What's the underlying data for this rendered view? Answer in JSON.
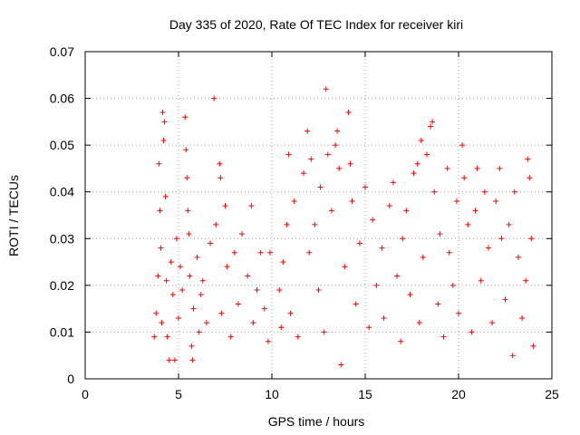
{
  "chart_data": {
    "type": "scatter",
    "title": "Day 335 of 2020, Rate Of TEC Index for receiver kiri",
    "xlabel": "GPS time / hours",
    "ylabel": "ROTI / TECUs",
    "xlim": [
      0,
      25
    ],
    "ylim": [
      0,
      0.07
    ],
    "xticks": [
      0,
      5,
      10,
      15,
      20,
      25
    ],
    "yticks": [
      0,
      0.01,
      0.02,
      0.03,
      0.04,
      0.05,
      0.06,
      0.07
    ],
    "xtick_labels": [
      "0",
      "5",
      "10",
      "15",
      "20",
      "25"
    ],
    "ytick_labels": [
      "0",
      "0.01",
      "0.02",
      "0.03",
      "0.04",
      "0.05",
      "0.06",
      "0.07"
    ],
    "grid": true,
    "marker": "+",
    "color": "#ff0000",
    "series": [
      {
        "name": "kiri",
        "points": [
          [
            3.7,
            0.009
          ],
          [
            3.8,
            0.014
          ],
          [
            3.9,
            0.022
          ],
          [
            3.95,
            0.046
          ],
          [
            4.0,
            0.036
          ],
          [
            4.05,
            0.028
          ],
          [
            4.1,
            0.012
          ],
          [
            4.15,
            0.057
          ],
          [
            4.2,
            0.051
          ],
          [
            4.25,
            0.055
          ],
          [
            4.3,
            0.039
          ],
          [
            4.35,
            0.021
          ],
          [
            4.4,
            0.009
          ],
          [
            4.5,
            0.004
          ],
          [
            4.6,
            0.025
          ],
          [
            4.7,
            0.018
          ],
          [
            4.8,
            0.004
          ],
          [
            4.9,
            0.03
          ],
          [
            5.0,
            0.013
          ],
          [
            5.1,
            0.024
          ],
          [
            5.2,
            0.019
          ],
          [
            5.35,
            0.056
          ],
          [
            5.4,
            0.049
          ],
          [
            5.45,
            0.043
          ],
          [
            5.5,
            0.036
          ],
          [
            5.55,
            0.031
          ],
          [
            5.6,
            0.022
          ],
          [
            5.7,
            0.007
          ],
          [
            5.75,
            0.004
          ],
          [
            5.8,
            0.015
          ],
          [
            6.0,
            0.026
          ],
          [
            6.1,
            0.01
          ],
          [
            6.2,
            0.018
          ],
          [
            6.3,
            0.021
          ],
          [
            6.5,
            0.012
          ],
          [
            6.7,
            0.029
          ],
          [
            6.9,
            0.06
          ],
          [
            7.0,
            0.033
          ],
          [
            7.2,
            0.046
          ],
          [
            7.25,
            0.043
          ],
          [
            7.3,
            0.014
          ],
          [
            7.5,
            0.037
          ],
          [
            7.6,
            0.024
          ],
          [
            7.8,
            0.009
          ],
          [
            8.0,
            0.027
          ],
          [
            8.2,
            0.016
          ],
          [
            8.4,
            0.031
          ],
          [
            8.7,
            0.022
          ],
          [
            8.9,
            0.037
          ],
          [
            9.0,
            0.012
          ],
          [
            9.2,
            0.019
          ],
          [
            9.4,
            0.027
          ],
          [
            9.6,
            0.015
          ],
          [
            9.8,
            0.008
          ],
          [
            9.9,
            0.027
          ],
          [
            10.4,
            0.019
          ],
          [
            10.5,
            0.011
          ],
          [
            10.6,
            0.025
          ],
          [
            10.8,
            0.033
          ],
          [
            10.9,
            0.048
          ],
          [
            11.0,
            0.014
          ],
          [
            11.2,
            0.038
          ],
          [
            11.4,
            0.009
          ],
          [
            11.7,
            0.044
          ],
          [
            11.9,
            0.053
          ],
          [
            12.0,
            0.027
          ],
          [
            12.1,
            0.047
          ],
          [
            12.3,
            0.033
          ],
          [
            12.5,
            0.019
          ],
          [
            12.6,
            0.041
          ],
          [
            12.8,
            0.01
          ],
          [
            12.9,
            0.062
          ],
          [
            13.0,
            0.048
          ],
          [
            13.2,
            0.036
          ],
          [
            13.4,
            0.05
          ],
          [
            13.5,
            0.053
          ],
          [
            13.6,
            0.045
          ],
          [
            13.7,
            0.003
          ],
          [
            13.9,
            0.024
          ],
          [
            14.1,
            0.057
          ],
          [
            14.2,
            0.046
          ],
          [
            14.3,
            0.038
          ],
          [
            14.5,
            0.016
          ],
          [
            14.7,
            0.029
          ],
          [
            15.0,
            0.041
          ],
          [
            15.2,
            0.011
          ],
          [
            15.4,
            0.034
          ],
          [
            15.6,
            0.02
          ],
          [
            15.9,
            0.028
          ],
          [
            16.0,
            0.013
          ],
          [
            16.3,
            0.037
          ],
          [
            16.5,
            0.042
          ],
          [
            16.7,
            0.022
          ],
          [
            16.9,
            0.008
          ],
          [
            17.0,
            0.03
          ],
          [
            17.2,
            0.036
          ],
          [
            17.4,
            0.018
          ],
          [
            17.6,
            0.044
          ],
          [
            17.8,
            0.046
          ],
          [
            17.9,
            0.012
          ],
          [
            18.0,
            0.051
          ],
          [
            18.1,
            0.026
          ],
          [
            18.3,
            0.048
          ],
          [
            18.5,
            0.054
          ],
          [
            18.6,
            0.055
          ],
          [
            18.7,
            0.04
          ],
          [
            18.9,
            0.016
          ],
          [
            19.0,
            0.031
          ],
          [
            19.2,
            0.009
          ],
          [
            19.4,
            0.045
          ],
          [
            19.5,
            0.027
          ],
          [
            19.7,
            0.02
          ],
          [
            19.9,
            0.038
          ],
          [
            20.0,
            0.014
          ],
          [
            20.2,
            0.05
          ],
          [
            20.3,
            0.043
          ],
          [
            20.5,
            0.033
          ],
          [
            20.7,
            0.01
          ],
          [
            20.9,
            0.036
          ],
          [
            21.0,
            0.045
          ],
          [
            21.2,
            0.021
          ],
          [
            21.4,
            0.04
          ],
          [
            21.6,
            0.028
          ],
          [
            21.8,
            0.012
          ],
          [
            22.0,
            0.038
          ],
          [
            22.2,
            0.045
          ],
          [
            22.3,
            0.03
          ],
          [
            22.5,
            0.017
          ],
          [
            22.7,
            0.033
          ],
          [
            22.9,
            0.005
          ],
          [
            23.0,
            0.04
          ],
          [
            23.2,
            0.026
          ],
          [
            23.4,
            0.013
          ],
          [
            23.6,
            0.021
          ],
          [
            23.7,
            0.047
          ],
          [
            23.8,
            0.043
          ],
          [
            23.9,
            0.03
          ],
          [
            24.0,
            0.007
          ]
        ]
      }
    ]
  }
}
